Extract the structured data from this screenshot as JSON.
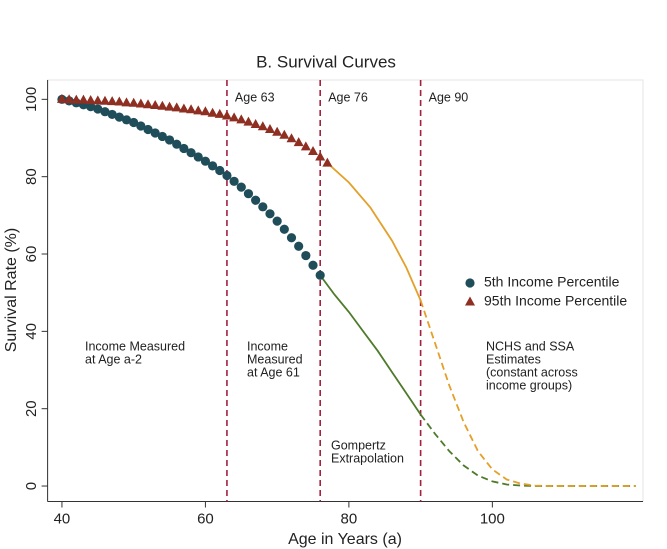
{
  "chart_data": {
    "type": "line",
    "title": "B. Survival Curves",
    "x_label": "Age in Years (a)",
    "y_label": "Survival Rate (%)",
    "xlim": [
      38,
      121
    ],
    "ylim": [
      -4,
      105
    ],
    "xticks": [
      40,
      60,
      80,
      100
    ],
    "yticks": [
      0,
      20,
      40,
      60,
      80,
      100
    ],
    "legend": "right",
    "series": [
      {
        "name": "5th Income Percentile",
        "color": "#1f4d5a",
        "marker": "circle",
        "x": [
          40,
          41,
          42,
          43,
          44,
          45,
          46,
          47,
          48,
          49,
          50,
          51,
          52,
          53,
          54,
          55,
          56,
          57,
          58,
          59,
          60,
          61,
          62,
          63,
          64,
          65,
          66,
          67,
          68,
          69,
          70,
          71,
          72,
          73,
          74,
          75,
          76
        ],
        "values": [
          100,
          99.6,
          99.1,
          98.6,
          98.1,
          97.5,
          96.8,
          96.1,
          95.4,
          94.7,
          94.0,
          93.1,
          92.2,
          91.3,
          90.4,
          89.5,
          88.4,
          87.3,
          86.2,
          85.1,
          84.0,
          82.8,
          81.6,
          80.3,
          78.8,
          77.3,
          75.6,
          73.9,
          72.2,
          70.4,
          68.5,
          66.4,
          64.2,
          62.0,
          59.6,
          57.1,
          54.5
        ]
      },
      {
        "name": "95th Income Percentile",
        "color": "#8e2f22",
        "marker": "triangle",
        "x": [
          40,
          41,
          42,
          43,
          44,
          45,
          46,
          47,
          48,
          49,
          50,
          51,
          52,
          53,
          54,
          55,
          56,
          57,
          58,
          59,
          60,
          61,
          62,
          63,
          64,
          65,
          66,
          67,
          68,
          69,
          70,
          71,
          72,
          73,
          74,
          75,
          76,
          77
        ],
        "values": [
          100,
          99.9,
          99.8,
          99.8,
          99.7,
          99.6,
          99.5,
          99.4,
          99.3,
          99.1,
          99.0,
          98.8,
          98.6,
          98.4,
          98.2,
          98.0,
          97.8,
          97.5,
          97.3,
          97.0,
          96.8,
          96.4,
          96.1,
          95.7,
          95.2,
          94.7,
          94.1,
          93.5,
          92.9,
          92.2,
          91.5,
          90.7,
          89.8,
          88.8,
          87.7,
          86.5,
          85.1,
          83.5
        ]
      }
    ],
    "curves": [
      {
        "color": "#4e7a2a",
        "style": "solid",
        "x": [
          76,
          78,
          80,
          82,
          84,
          86,
          88,
          90
        ],
        "values": [
          54.5,
          49.5,
          45,
          40,
          35,
          29.5,
          24,
          18.5
        ]
      },
      {
        "color": "#4e7a2a",
        "style": "dashed",
        "x": [
          90,
          92,
          94,
          96,
          98,
          100,
          102,
          104,
          106,
          120
        ],
        "values": [
          18.5,
          13.5,
          9,
          5.3,
          2.7,
          1.2,
          0.4,
          0.1,
          0,
          0
        ]
      },
      {
        "color": "#e3a02a",
        "style": "solid",
        "x": [
          77,
          80,
          83,
          86,
          88,
          90
        ],
        "values": [
          83.5,
          78.5,
          72,
          63.5,
          56.5,
          48
        ]
      },
      {
        "color": "#e3a02a",
        "style": "dashed",
        "x": [
          90,
          92,
          94,
          96,
          98,
          100,
          102,
          104,
          106,
          108,
          120
        ],
        "values": [
          48,
          37,
          26,
          16.5,
          9,
          4.3,
          1.7,
          0.6,
          0.1,
          0,
          0
        ]
      }
    ],
    "vlines": [
      {
        "x": 63,
        "label": "Age 63",
        "color": "#a3203f"
      },
      {
        "x": 76,
        "label": "Age 76",
        "color": "#a3203f"
      },
      {
        "x": 90,
        "label": "Age 90",
        "color": "#a3203f"
      }
    ],
    "annotations": [
      {
        "lines": [
          "Income Measured",
          "at Age a-2"
        ]
      },
      {
        "lines": [
          "Income",
          "Measured",
          "at Age 61"
        ]
      },
      {
        "lines": [
          "NCHS and SSA",
          "Estimates",
          "(constant across",
          "income groups)"
        ]
      },
      {
        "lines": [
          "Gompertz",
          "Extrapolation"
        ]
      }
    ]
  }
}
